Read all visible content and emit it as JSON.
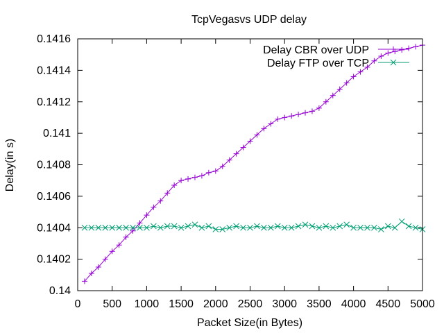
{
  "chart_data": {
    "type": "line",
    "title": "TcpVegasvs UDP delay",
    "xlabel": "Packet Size(in Bytes)",
    "ylabel": "Delay(in s)",
    "xlim": [
      0,
      5000
    ],
    "ylim": [
      0.14,
      0.1416
    ],
    "xticks": [
      0,
      500,
      1000,
      1500,
      2000,
      2500,
      3000,
      3500,
      4000,
      4500,
      5000
    ],
    "xtick_labels": [
      "0",
      "500",
      "1000",
      "1500",
      "2000",
      "2500",
      "3000",
      "3500",
      "4000",
      "4500",
      "5000"
    ],
    "yticks": [
      0.14,
      0.1402,
      0.1404,
      0.1406,
      0.1408,
      0.141,
      0.1412,
      0.1414,
      0.1416
    ],
    "ytick_labels": [
      "0.14",
      "0.1402",
      "0.1404",
      "0.1406",
      "0.1408",
      "0.141",
      "0.1412",
      "0.1414",
      "0.1416"
    ],
    "grid": false,
    "legend_position": "top-right",
    "x": [
      100,
      200,
      300,
      400,
      500,
      600,
      700,
      800,
      900,
      1000,
      1100,
      1200,
      1300,
      1400,
      1500,
      1600,
      1700,
      1800,
      1900,
      2000,
      2100,
      2200,
      2300,
      2400,
      2500,
      2600,
      2700,
      2800,
      2900,
      3000,
      3100,
      3200,
      3300,
      3400,
      3500,
      3600,
      3700,
      3800,
      3900,
      4000,
      4100,
      4200,
      4300,
      4400,
      4500,
      4600,
      4700,
      4800,
      4900,
      5000
    ],
    "series": [
      {
        "name": "Delay CBR over UDP",
        "color": "#9400d3",
        "marker": "plus",
        "values": [
          0.14006,
          0.14011,
          0.14015,
          0.1402,
          0.14025,
          0.14029,
          0.14034,
          0.14038,
          0.14043,
          0.14048,
          0.14053,
          0.14057,
          0.14062,
          0.14067,
          0.1407,
          0.14071,
          0.14072,
          0.14073,
          0.14075,
          0.14076,
          0.14079,
          0.14083,
          0.14087,
          0.14091,
          0.14095,
          0.14099,
          0.14103,
          0.14106,
          0.14109,
          0.1411,
          0.14111,
          0.14112,
          0.14113,
          0.14114,
          0.14116,
          0.1412,
          0.14124,
          0.14128,
          0.14132,
          0.14136,
          0.14139,
          0.14142,
          0.14146,
          0.14149,
          0.14151,
          0.14152,
          0.14153,
          0.14154,
          0.14155,
          0.14156
        ]
      },
      {
        "name": "Delay FTP over TCP",
        "color": "#009e73",
        "marker": "cross",
        "values": [
          0.1404,
          0.1404,
          0.1404,
          0.1404,
          0.1404,
          0.1404,
          0.1404,
          0.1404,
          0.1404,
          0.1404,
          0.14041,
          0.1404,
          0.14041,
          0.14041,
          0.1404,
          0.14041,
          0.14042,
          0.1404,
          0.14041,
          0.14039,
          0.14039,
          0.1404,
          0.14041,
          0.1404,
          0.1404,
          0.14041,
          0.1404,
          0.1404,
          0.14041,
          0.1404,
          0.1404,
          0.14041,
          0.14042,
          0.14041,
          0.1404,
          0.14041,
          0.1404,
          0.14041,
          0.14042,
          0.1404,
          0.1404,
          0.1404,
          0.1404,
          0.14039,
          0.14041,
          0.1404,
          0.14044,
          0.14041,
          0.1404,
          0.14039
        ]
      }
    ]
  }
}
